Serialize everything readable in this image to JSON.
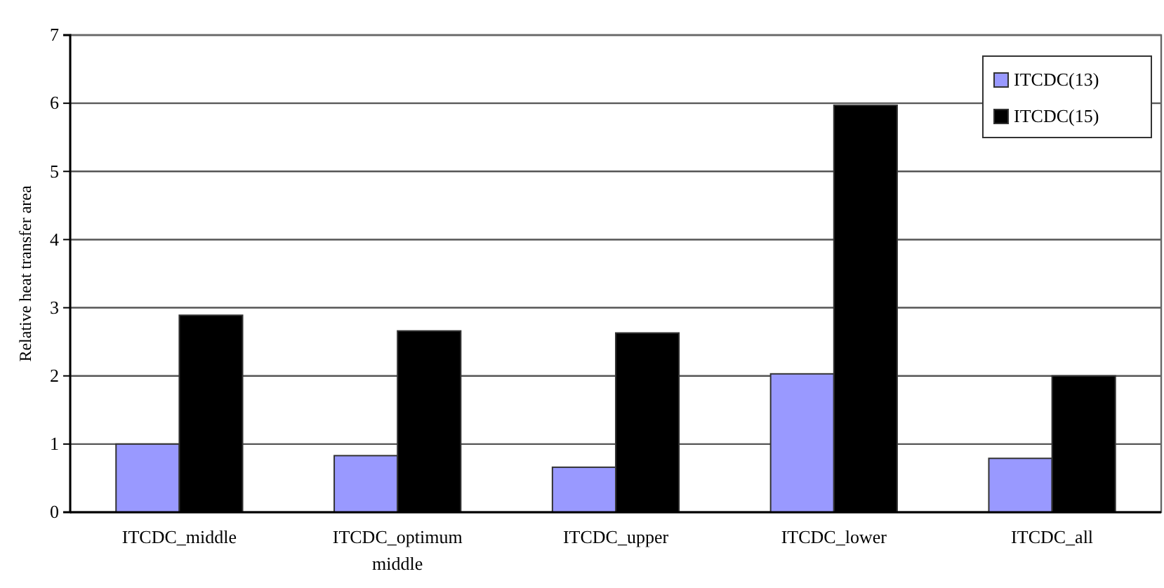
{
  "chart_data": {
    "type": "bar",
    "ylabel": "Relative heat transfer area",
    "categories": [
      "ITCDC_middle",
      "ITCDC_optimum middle",
      "ITCDC_upper",
      "ITCDC_lower",
      "ITCDC_all"
    ],
    "series": [
      {
        "name": "ITCDC(13)",
        "color": "#9999ff",
        "values": [
          1.0,
          0.83,
          0.66,
          2.03,
          0.79
        ]
      },
      {
        "name": "ITCDC(15)",
        "color": "#000000",
        "values": [
          2.89,
          2.66,
          2.63,
          5.97,
          2.0
        ]
      }
    ],
    "ylim": [
      0,
      7
    ],
    "yticks": [
      0,
      1,
      2,
      3,
      4,
      5,
      6,
      7
    ],
    "grid": "y",
    "legend": "top right"
  }
}
